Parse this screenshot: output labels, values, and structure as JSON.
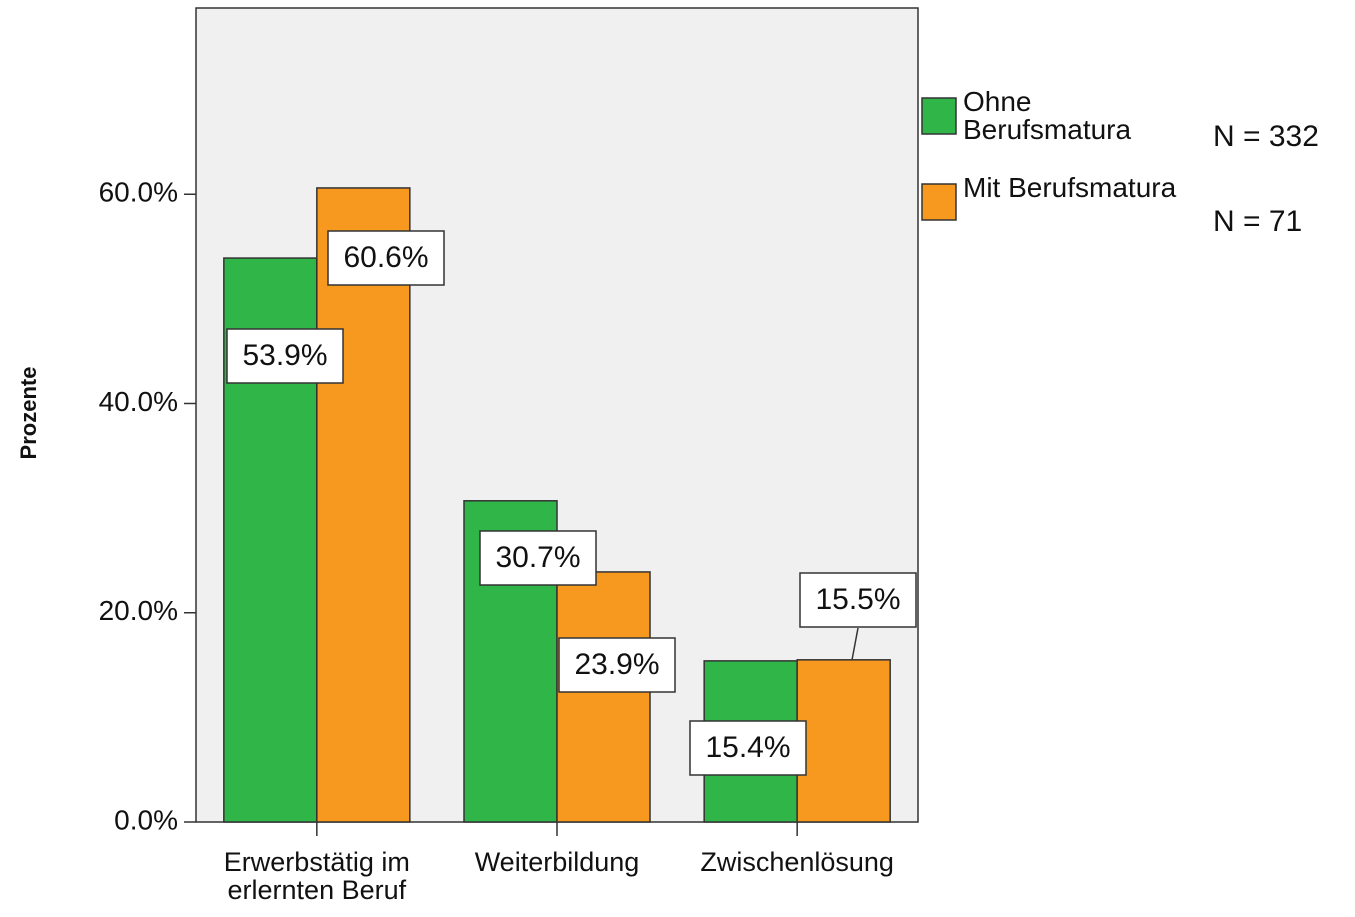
{
  "chart_data": {
    "type": "bar",
    "y_label": "Prozente",
    "categories": [
      "Erwerbstätig im erlernten Beruf",
      "Weiterbildung",
      "Zwischenlösung"
    ],
    "series": [
      {
        "name": "Ohne Berufsmatura",
        "color": "#2fb548",
        "values": [
          53.9,
          30.7,
          15.4
        ],
        "value_labels": [
          "53.9%",
          "30.7%",
          "15.4%"
        ]
      },
      {
        "name": "Mit Berufsmatura",
        "color": "#f7981f",
        "values": [
          60.6,
          23.9,
          15.5
        ],
        "value_labels": [
          "60.6%",
          "23.9%",
          "15.5%"
        ]
      }
    ],
    "annotations": [
      "N = 332",
      "N = 71"
    ],
    "ylim": [
      0,
      77.8
    ],
    "yticks": [
      {
        "value": 0,
        "label": "0.0%"
      },
      {
        "value": 20,
        "label": "20.0%"
      },
      {
        "value": 40,
        "label": "40.0%"
      },
      {
        "value": 60,
        "label": "60.0%"
      }
    ],
    "grid": false
  }
}
